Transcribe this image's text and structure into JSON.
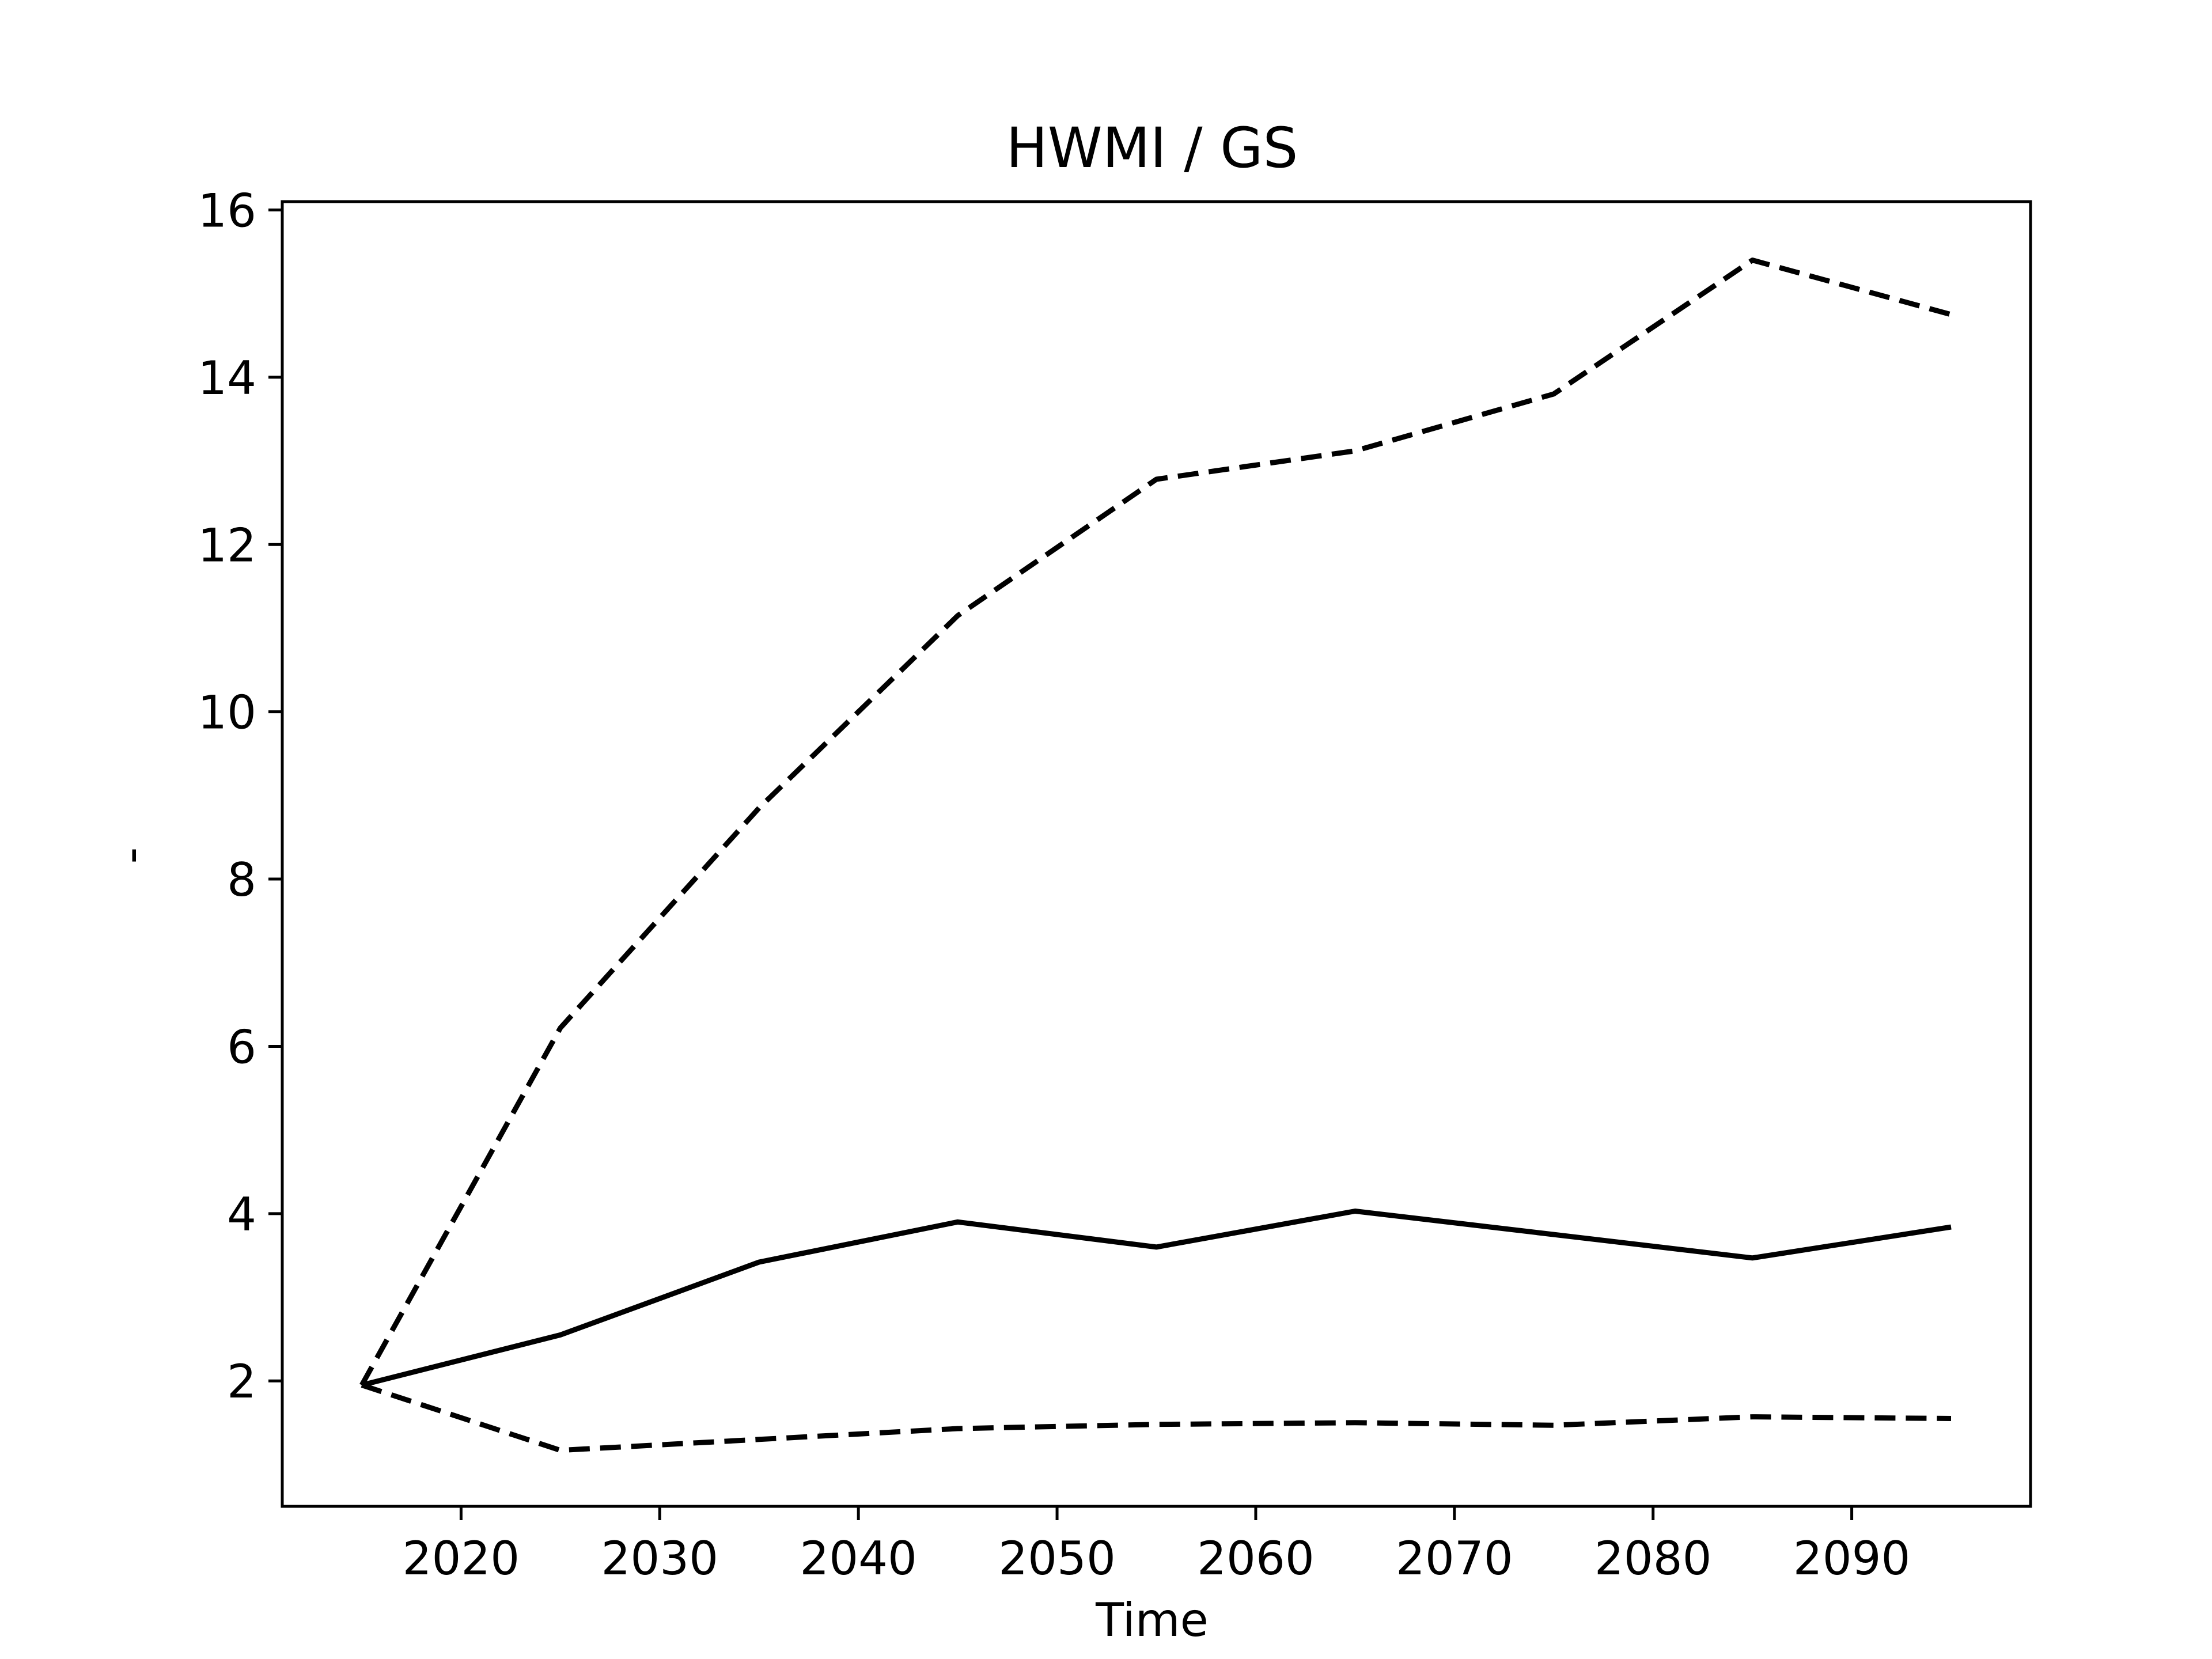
{
  "chart_data": {
    "type": "line",
    "title": "HWMI / GS",
    "xlabel": "Time",
    "ylabel": "-",
    "x": [
      2015,
      2025,
      2035,
      2045,
      2055,
      2065,
      2075,
      2085,
      2095
    ],
    "series": [
      {
        "style": "solid",
        "color": "#000000",
        "values": [
          1.95,
          2.55,
          3.42,
          3.9,
          3.6,
          4.03,
          3.75,
          3.47,
          3.84
        ]
      },
      {
        "style": "dashed",
        "color": "#000000",
        "values": [
          1.95,
          6.22,
          8.85,
          11.15,
          12.78,
          13.12,
          13.8,
          15.4,
          14.75
        ]
      },
      {
        "style": "dashed",
        "color": "#000000",
        "values": [
          1.95,
          1.17,
          1.3,
          1.43,
          1.48,
          1.5,
          1.47,
          1.57,
          1.55
        ]
      }
    ],
    "xlim": [
      2011,
      2099
    ],
    "ylim": [
      0.5,
      16.1
    ],
    "xticks": [
      "2020",
      "2030",
      "2040",
      "2050",
      "2060",
      "2070",
      "2080",
      "2090"
    ],
    "yticks": [
      "2",
      "4",
      "6",
      "8",
      "10",
      "12",
      "14",
      "16"
    ],
    "grid": false,
    "legend": false
  }
}
